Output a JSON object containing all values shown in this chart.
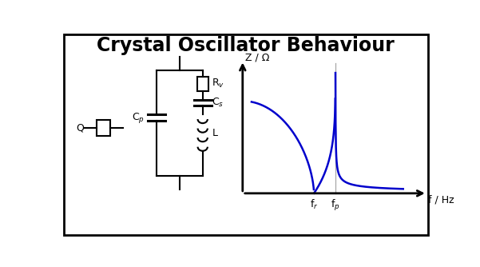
{
  "title": "Crystal Oscillator Behaviour",
  "title_fontsize": 17,
  "bg_color": "#ffffff",
  "border_color": "#000000",
  "circuit_color": "#000000",
  "graph_color": "#0000cc",
  "axis_color": "#000000",
  "fr_label": "f$_r$",
  "fp_label": "f$_p$",
  "f_axis_label": "f / Hz",
  "z_axis_label": "Z / Ω",
  "cp_label": "C$_p$",
  "cs_label": "C$_s$",
  "rv_label": "R$_v$",
  "l_label": "L",
  "q_label": "Q",
  "fr_n": 0.4,
  "fp_n": 0.52,
  "gx0": 295,
  "gy0": 72,
  "gx1": 585,
  "gy1": 278
}
